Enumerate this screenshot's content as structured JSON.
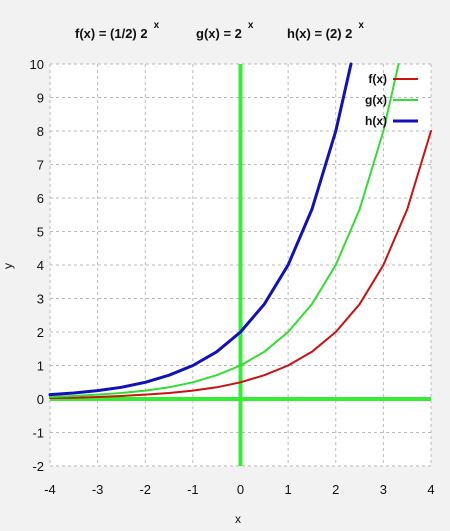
{
  "titles": [
    {
      "base": "f(x) =  (1/2)  2",
      "exp": "x"
    },
    {
      "base": "g(x) =   2",
      "exp": "x"
    },
    {
      "base": "h(x) = (2)  2",
      "exp": "x"
    }
  ],
  "chart_data": {
    "type": "line",
    "xlabel": "x",
    "ylabel": "y",
    "xlim": [
      -4,
      4
    ],
    "ylim": [
      -2,
      10
    ],
    "x_ticks": [
      "-4",
      "-3",
      "-2",
      "-1",
      "0",
      "1",
      "2",
      "3",
      "4"
    ],
    "y_ticks": [
      "-2",
      "-1",
      "0",
      "1",
      "2",
      "3",
      "4",
      "5",
      "6",
      "7",
      "8",
      "9",
      "10"
    ],
    "grid": true,
    "legend_position": "top-right",
    "axis_line_color": "#33ee33",
    "series": [
      {
        "name": "f(x)",
        "color": "#cc1111",
        "x": [
          -4,
          -3.5,
          -3,
          -2.5,
          -2,
          -1.5,
          -1,
          -0.5,
          0,
          0.5,
          1,
          1.5,
          2,
          2.5,
          3,
          3.5,
          4
        ],
        "values": [
          0.03,
          0.04,
          0.06,
          0.09,
          0.13,
          0.18,
          0.25,
          0.35,
          0.5,
          0.71,
          1.0,
          1.41,
          2.0,
          2.83,
          4.0,
          5.66,
          8.0
        ]
      },
      {
        "name": "g(x)",
        "color": "#33dd33",
        "x": [
          -4,
          -3.5,
          -3,
          -2.5,
          -2,
          -1.5,
          -1,
          -0.5,
          0,
          0.5,
          1,
          1.5,
          2,
          2.5,
          3,
          3.32
        ],
        "values": [
          0.06,
          0.09,
          0.13,
          0.18,
          0.25,
          0.35,
          0.5,
          0.71,
          1.0,
          1.41,
          2.0,
          2.83,
          4.0,
          5.66,
          8.0,
          10.0
        ]
      },
      {
        "name": "h(x)",
        "color": "#1111bb",
        "x": [
          -4,
          -3.5,
          -3,
          -2.5,
          -2,
          -1.5,
          -1,
          -0.5,
          0,
          0.5,
          1,
          1.5,
          2,
          2.32
        ],
        "values": [
          0.13,
          0.18,
          0.25,
          0.35,
          0.5,
          0.71,
          1.0,
          1.41,
          2.0,
          2.83,
          4.0,
          5.66,
          8.0,
          10.0
        ]
      }
    ]
  }
}
